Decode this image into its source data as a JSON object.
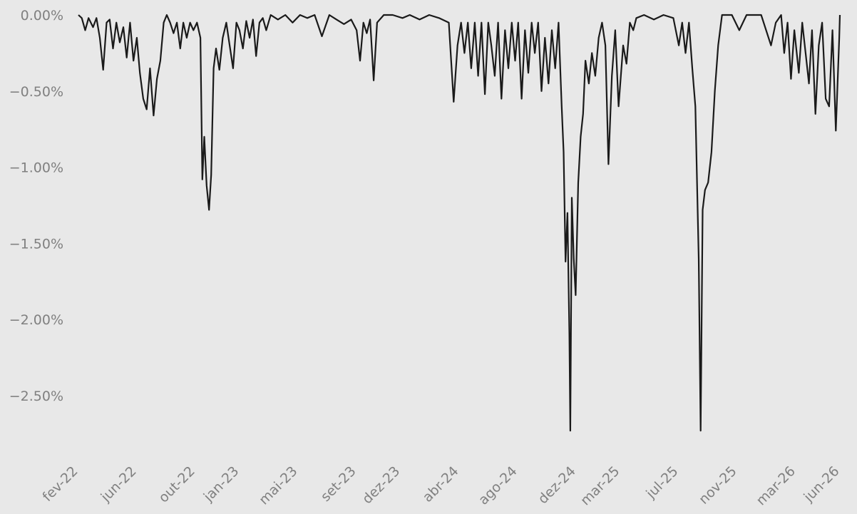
{
  "chart_data": {
    "type": "line",
    "title": "",
    "xlabel": "",
    "ylabel": "",
    "ylim": [
      -2.85,
      0.0
    ],
    "yticks": [
      {
        "value": 0.0,
        "label": "0.00%"
      },
      {
        "value": -0.5,
        "label": "−0.50%"
      },
      {
        "value": -1.0,
        "label": "−1.00%"
      },
      {
        "value": -1.5,
        "label": "−1.50%"
      },
      {
        "value": -2.0,
        "label": "−2.00%"
      },
      {
        "value": -2.5,
        "label": "−2.50%"
      }
    ],
    "xticks": [
      "fev-22",
      "jun-22",
      "out-22",
      "jan-23",
      "mai-23",
      "set-23",
      "dez-23",
      "abr-24",
      "ago-24",
      "dez-24",
      "mar-25",
      "jul-25",
      "nov-25",
      "mar-26",
      "jun-26"
    ],
    "x_range": [
      "2022-02",
      "2026-06"
    ],
    "grid": false,
    "legend": "none",
    "line_color": "#1a1a1a",
    "background": "#e8e8e8",
    "tick_label_color": "#808080",
    "series": [
      {
        "values": [
          [
            "2022-02-01",
            0.0
          ],
          [
            "2022-02-08",
            -0.02
          ],
          [
            "2022-02-15",
            -0.1
          ],
          [
            "2022-02-22",
            -0.02
          ],
          [
            "2022-03-01",
            -0.08
          ],
          [
            "2022-03-08",
            -0.02
          ],
          [
            "2022-03-15",
            -0.15
          ],
          [
            "2022-03-22",
            -0.36
          ],
          [
            "2022-03-29",
            -0.05
          ],
          [
            "2022-04-05",
            -0.03
          ],
          [
            "2022-04-12",
            -0.22
          ],
          [
            "2022-04-19",
            -0.05
          ],
          [
            "2022-04-26",
            -0.18
          ],
          [
            "2022-05-03",
            -0.08
          ],
          [
            "2022-05-10",
            -0.28
          ],
          [
            "2022-05-17",
            -0.05
          ],
          [
            "2022-05-24",
            -0.3
          ],
          [
            "2022-05-31",
            -0.15
          ],
          [
            "2022-06-07",
            -0.38
          ],
          [
            "2022-06-14",
            -0.55
          ],
          [
            "2022-06-21",
            -0.62
          ],
          [
            "2022-06-28",
            -0.35
          ],
          [
            "2022-07-05",
            -0.66
          ],
          [
            "2022-07-12",
            -0.42
          ],
          [
            "2022-07-19",
            -0.3
          ],
          [
            "2022-07-26",
            -0.05
          ],
          [
            "2022-08-02",
            0.0
          ],
          [
            "2022-08-09",
            -0.05
          ],
          [
            "2022-08-16",
            -0.12
          ],
          [
            "2022-08-23",
            -0.05
          ],
          [
            "2022-08-30",
            -0.22
          ],
          [
            "2022-09-06",
            -0.05
          ],
          [
            "2022-09-13",
            -0.15
          ],
          [
            "2022-09-20",
            -0.05
          ],
          [
            "2022-09-27",
            -0.1
          ],
          [
            "2022-10-04",
            -0.05
          ],
          [
            "2022-10-11",
            -0.15
          ],
          [
            "2022-10-15",
            -1.08
          ],
          [
            "2022-10-19",
            -0.8
          ],
          [
            "2022-10-24",
            -1.12
          ],
          [
            "2022-10-29",
            -1.28
          ],
          [
            "2022-11-03",
            -1.05
          ],
          [
            "2022-11-08",
            -0.35
          ],
          [
            "2022-11-13",
            -0.22
          ],
          [
            "2022-11-20",
            -0.36
          ],
          [
            "2022-11-27",
            -0.15
          ],
          [
            "2022-12-04",
            -0.05
          ],
          [
            "2022-12-11",
            -0.2
          ],
          [
            "2022-12-18",
            -0.35
          ],
          [
            "2022-12-25",
            -0.05
          ],
          [
            "2023-01-01",
            -0.1
          ],
          [
            "2023-01-08",
            -0.22
          ],
          [
            "2023-01-15",
            -0.04
          ],
          [
            "2023-01-22",
            -0.15
          ],
          [
            "2023-01-29",
            -0.03
          ],
          [
            "2023-02-05",
            -0.27
          ],
          [
            "2023-02-12",
            -0.05
          ],
          [
            "2023-02-19",
            -0.02
          ],
          [
            "2023-02-26",
            -0.1
          ],
          [
            "2023-03-05",
            0.0
          ],
          [
            "2023-03-20",
            -0.03
          ],
          [
            "2023-04-05",
            0.0
          ],
          [
            "2023-04-20",
            -0.05
          ],
          [
            "2023-05-05",
            0.0
          ],
          [
            "2023-05-20",
            -0.02
          ],
          [
            "2023-06-05",
            0.0
          ],
          [
            "2023-06-20",
            -0.14
          ],
          [
            "2023-07-05",
            0.0
          ],
          [
            "2023-07-20",
            -0.03
          ],
          [
            "2023-08-05",
            -0.06
          ],
          [
            "2023-08-20",
            -0.03
          ],
          [
            "2023-09-01",
            -0.1
          ],
          [
            "2023-09-08",
            -0.3
          ],
          [
            "2023-09-15",
            -0.05
          ],
          [
            "2023-09-22",
            -0.12
          ],
          [
            "2023-09-29",
            -0.03
          ],
          [
            "2023-10-06",
            -0.43
          ],
          [
            "2023-10-13",
            -0.05
          ],
          [
            "2023-10-27",
            0.0
          ],
          [
            "2023-11-15",
            0.0
          ],
          [
            "2023-12-05",
            -0.02
          ],
          [
            "2023-12-20",
            0.0
          ],
          [
            "2024-01-10",
            -0.03
          ],
          [
            "2024-01-30",
            0.0
          ],
          [
            "2024-02-20",
            -0.02
          ],
          [
            "2024-03-10",
            -0.05
          ],
          [
            "2024-03-20",
            -0.57
          ],
          [
            "2024-03-28",
            -0.2
          ],
          [
            "2024-04-05",
            -0.05
          ],
          [
            "2024-04-12",
            -0.25
          ],
          [
            "2024-04-19",
            -0.05
          ],
          [
            "2024-04-26",
            -0.35
          ],
          [
            "2024-05-03",
            -0.05
          ],
          [
            "2024-05-10",
            -0.4
          ],
          [
            "2024-05-17",
            -0.05
          ],
          [
            "2024-05-24",
            -0.52
          ],
          [
            "2024-05-31",
            -0.05
          ],
          [
            "2024-06-07",
            -0.2
          ],
          [
            "2024-06-14",
            -0.4
          ],
          [
            "2024-06-21",
            -0.05
          ],
          [
            "2024-06-28",
            -0.55
          ],
          [
            "2024-07-05",
            -0.1
          ],
          [
            "2024-07-12",
            -0.35
          ],
          [
            "2024-07-19",
            -0.05
          ],
          [
            "2024-07-26",
            -0.3
          ],
          [
            "2024-08-02",
            -0.05
          ],
          [
            "2024-08-09",
            -0.55
          ],
          [
            "2024-08-16",
            -0.1
          ],
          [
            "2024-08-23",
            -0.38
          ],
          [
            "2024-08-30",
            -0.05
          ],
          [
            "2024-09-06",
            -0.25
          ],
          [
            "2024-09-13",
            -0.05
          ],
          [
            "2024-09-20",
            -0.5
          ],
          [
            "2024-09-27",
            -0.15
          ],
          [
            "2024-10-04",
            -0.45
          ],
          [
            "2024-10-11",
            -0.1
          ],
          [
            "2024-10-18",
            -0.35
          ],
          [
            "2024-10-25",
            -0.05
          ],
          [
            "2024-11-01",
            -0.6
          ],
          [
            "2024-11-05",
            -0.9
          ],
          [
            "2024-11-09",
            -1.62
          ],
          [
            "2024-11-13",
            -1.3
          ],
          [
            "2024-11-17",
            -2.1
          ],
          [
            "2024-11-19",
            -2.73
          ],
          [
            "2024-11-22",
            -1.2
          ],
          [
            "2024-11-26",
            -1.6
          ],
          [
            "2024-11-30",
            -1.84
          ],
          [
            "2024-12-05",
            -1.1
          ],
          [
            "2024-12-10",
            -0.8
          ],
          [
            "2024-12-15",
            -0.65
          ],
          [
            "2024-12-20",
            -0.3
          ],
          [
            "2024-12-27",
            -0.45
          ],
          [
            "2025-01-03",
            -0.25
          ],
          [
            "2025-01-10",
            -0.4
          ],
          [
            "2025-01-17",
            -0.15
          ],
          [
            "2025-01-24",
            -0.05
          ],
          [
            "2025-01-31",
            -0.2
          ],
          [
            "2025-02-07",
            -0.98
          ],
          [
            "2025-02-14",
            -0.4
          ],
          [
            "2025-02-21",
            -0.1
          ],
          [
            "2025-02-28",
            -0.6
          ],
          [
            "2025-03-07",
            -0.2
          ],
          [
            "2025-03-14",
            -0.32
          ],
          [
            "2025-03-21",
            -0.05
          ],
          [
            "2025-03-28",
            -0.1
          ],
          [
            "2025-04-04",
            -0.02
          ],
          [
            "2025-04-20",
            0.0
          ],
          [
            "2025-05-10",
            -0.03
          ],
          [
            "2025-05-30",
            0.0
          ],
          [
            "2025-06-20",
            -0.02
          ],
          [
            "2025-07-01",
            -0.2
          ],
          [
            "2025-07-08",
            -0.05
          ],
          [
            "2025-07-15",
            -0.25
          ],
          [
            "2025-07-22",
            -0.05
          ],
          [
            "2025-07-29",
            -0.35
          ],
          [
            "2025-08-05",
            -0.6
          ],
          [
            "2025-08-12",
            -1.6
          ],
          [
            "2025-08-16",
            -2.73
          ],
          [
            "2025-08-20",
            -1.28
          ],
          [
            "2025-08-25",
            -1.15
          ],
          [
            "2025-09-01",
            -1.1
          ],
          [
            "2025-09-08",
            -0.9
          ],
          [
            "2025-09-15",
            -0.5
          ],
          [
            "2025-09-22",
            -0.2
          ],
          [
            "2025-09-30",
            0.0
          ],
          [
            "2025-10-20",
            0.0
          ],
          [
            "2025-11-05",
            -0.1
          ],
          [
            "2025-11-20",
            0.0
          ],
          [
            "2025-12-20",
            0.0
          ],
          [
            "2026-01-10",
            -0.2
          ],
          [
            "2026-01-20",
            -0.05
          ],
          [
            "2026-01-31",
            0.0
          ],
          [
            "2026-02-07",
            -0.25
          ],
          [
            "2026-02-14",
            -0.05
          ],
          [
            "2026-02-21",
            -0.42
          ],
          [
            "2026-02-28",
            -0.1
          ],
          [
            "2026-03-07",
            -0.38
          ],
          [
            "2026-03-14",
            -0.05
          ],
          [
            "2026-03-21",
            -0.25
          ],
          [
            "2026-03-28",
            -0.45
          ],
          [
            "2026-04-04",
            -0.1
          ],
          [
            "2026-04-11",
            -0.65
          ],
          [
            "2026-04-18",
            -0.2
          ],
          [
            "2026-04-25",
            -0.05
          ],
          [
            "2026-05-02",
            -0.55
          ],
          [
            "2026-05-09",
            -0.6
          ],
          [
            "2026-05-16",
            -0.1
          ],
          [
            "2026-05-23",
            -0.76
          ],
          [
            "2026-05-30",
            -0.15
          ],
          [
            "2026-06-01",
            0.0
          ]
        ]
      }
    ]
  }
}
